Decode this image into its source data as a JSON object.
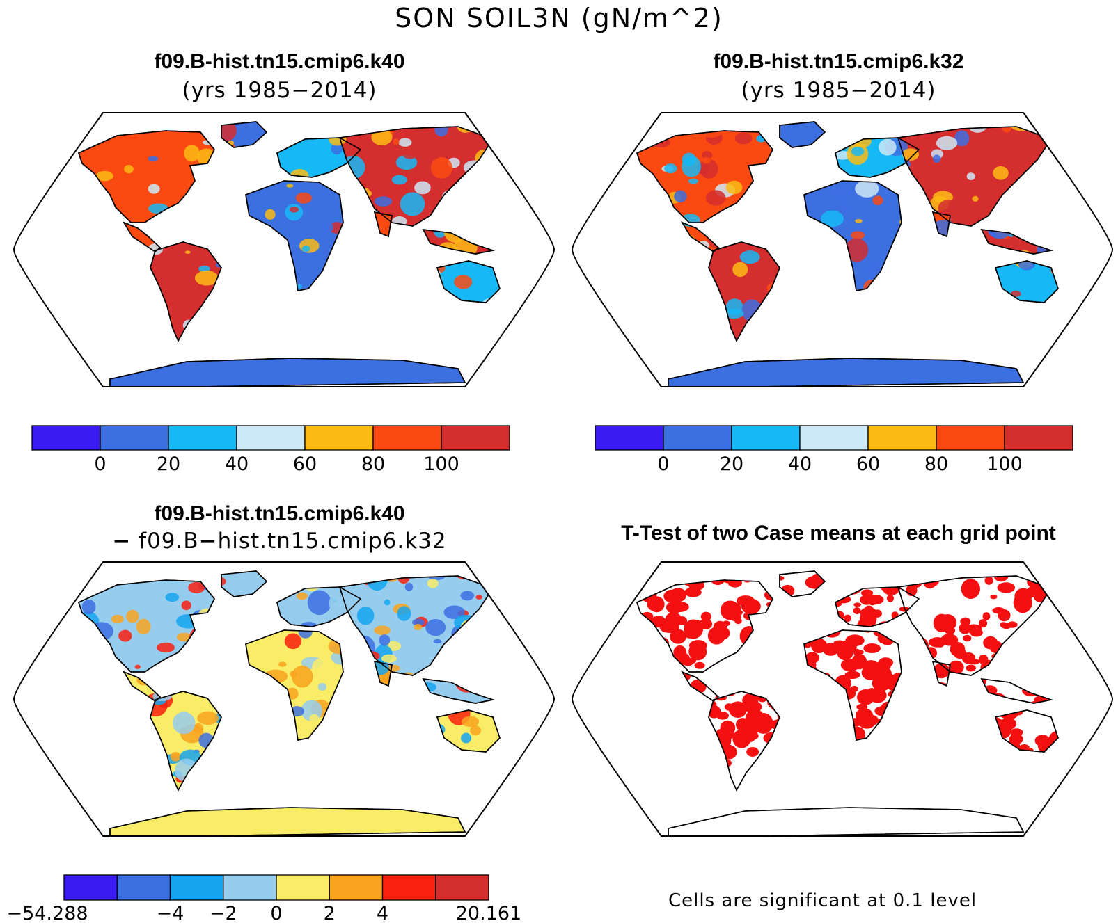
{
  "title": "SON SOIL3N (gN/m^2)",
  "panels": [
    {
      "id": "case1",
      "title_bold": "f09.B-hist.tn15.cmip6.k40",
      "title_thin": "(yrs 1985−2014)",
      "type": "abs"
    },
    {
      "id": "case2",
      "title_bold": "f09.B-hist.tn15.cmip6.k32",
      "title_thin": "(yrs 1985−2014)",
      "type": "abs"
    },
    {
      "id": "diff",
      "title_bold": "f09.B-hist.tn15.cmip6.k40",
      "title_thin": "− f09.B−hist.tn15.cmip6.k32",
      "type": "diff"
    },
    {
      "id": "ttest",
      "title_bold": "T-Test of two Case means at each grid point",
      "title_thin": "",
      "type": "sig"
    }
  ],
  "colorbars": {
    "abs": {
      "colors": [
        "#3a1cf2",
        "#3c6fe0",
        "#16b9f5",
        "#cde8f6",
        "#fbbb14",
        "#fa4a12",
        "#d42e2e"
      ],
      "labels": [
        "0",
        "20",
        "40",
        "60",
        "80",
        "100"
      ]
    },
    "diff": {
      "colors": [
        "#3a1cf2",
        "#3c6fe0",
        "#16a4f0",
        "#96cdef",
        "#f9ec66",
        "#f9a31e",
        "#f9200f",
        "#d42e2e"
      ],
      "labels": [
        "−54.288",
        "−4",
        "−2",
        "0",
        "2",
        "4",
        "20.161"
      ]
    }
  },
  "ttest_note": "Cells are significant at 0.1 level",
  "map_colors": {
    "ocean": "#ffffff",
    "coast": "#000000",
    "significant": "#f41010"
  }
}
